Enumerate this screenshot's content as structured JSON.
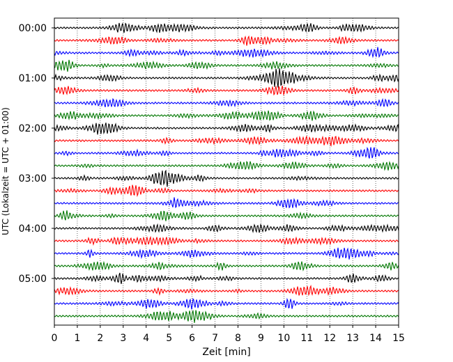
{
  "chart_data": {
    "type": "line",
    "title": "",
    "xlabel": "Zeit  [min]",
    "ylabel": "UTC (Lokalzeit = UTC + 01:00)",
    "xlim": [
      0,
      15
    ],
    "x_ticks": [
      "0",
      "1",
      "2",
      "3",
      "4",
      "5",
      "6",
      "7",
      "8",
      "9",
      "10",
      "11",
      "12",
      "13",
      "14",
      "15"
    ],
    "y_ticks": [
      "00:00",
      "01:00",
      "02:00",
      "03:00",
      "04:00",
      "05:00"
    ],
    "grid": "vertical dotted",
    "trace_interval_minutes": 15,
    "trace_count": 24,
    "trace_colors": [
      "#000000",
      "#ff0000",
      "#0000ff",
      "#007700"
    ],
    "series": [
      {
        "start": "00:00",
        "color": "#000000"
      },
      {
        "start": "00:15",
        "color": "#ff0000"
      },
      {
        "start": "00:30",
        "color": "#0000ff"
      },
      {
        "start": "00:45",
        "color": "#007700"
      },
      {
        "start": "01:00",
        "color": "#000000"
      },
      {
        "start": "01:15",
        "color": "#ff0000"
      },
      {
        "start": "01:30",
        "color": "#0000ff"
      },
      {
        "start": "01:45",
        "color": "#007700"
      },
      {
        "start": "02:00",
        "color": "#000000"
      },
      {
        "start": "02:15",
        "color": "#ff0000"
      },
      {
        "start": "02:30",
        "color": "#0000ff"
      },
      {
        "start": "02:45",
        "color": "#007700"
      },
      {
        "start": "03:00",
        "color": "#000000"
      },
      {
        "start": "03:15",
        "color": "#ff0000"
      },
      {
        "start": "03:30",
        "color": "#0000ff"
      },
      {
        "start": "03:45",
        "color": "#007700"
      },
      {
        "start": "04:00",
        "color": "#000000"
      },
      {
        "start": "04:15",
        "color": "#ff0000"
      },
      {
        "start": "04:30",
        "color": "#0000ff"
      },
      {
        "start": "04:45",
        "color": "#007700"
      },
      {
        "start": "05:00",
        "color": "#000000"
      },
      {
        "start": "05:15",
        "color": "#ff0000"
      },
      {
        "start": "05:30",
        "color": "#0000ff"
      },
      {
        "start": "05:45",
        "color": "#007700"
      }
    ]
  }
}
